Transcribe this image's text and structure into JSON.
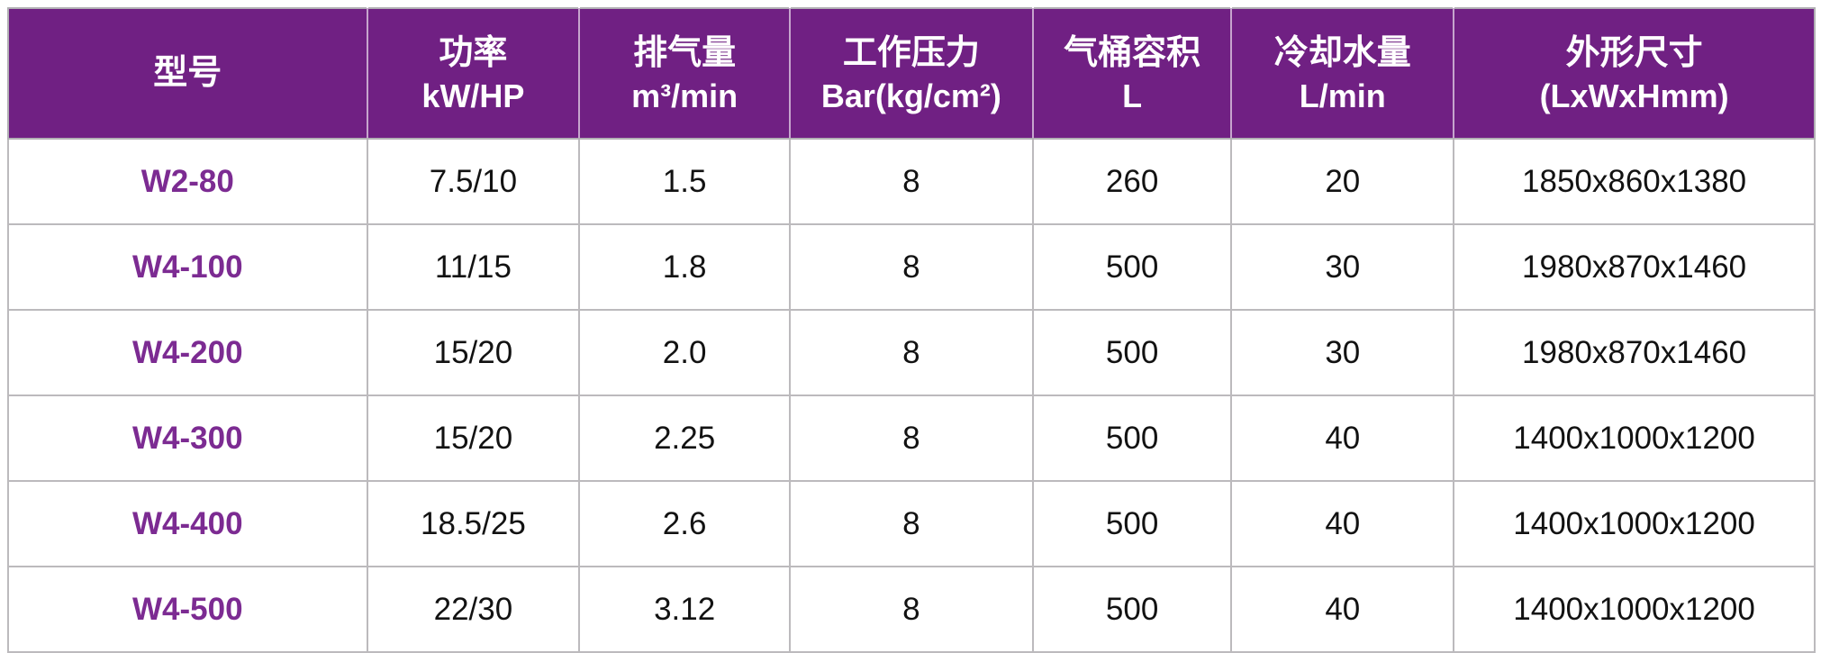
{
  "colors": {
    "header_bg": "#702083",
    "header_text": "#ffffff",
    "model_text": "#7c2b92",
    "cell_text": "#121212",
    "grid_line": "#b2b0b4",
    "background": "#ffffff"
  },
  "chart_data": {
    "type": "table",
    "title": "",
    "columns": [
      {
        "key": "model",
        "title": "型号",
        "unit": ""
      },
      {
        "key": "power",
        "title": "功率",
        "unit": "kW/HP"
      },
      {
        "key": "air-delivery",
        "title": "排气量",
        "unit": "m³/min"
      },
      {
        "key": "working-pressure",
        "title": "工作压力",
        "unit": "Bar(kg/cm²)"
      },
      {
        "key": "tank-capacity",
        "title": "气桶容积",
        "unit": "L"
      },
      {
        "key": "cooling-water",
        "title": "冷却水量",
        "unit": "L/min"
      },
      {
        "key": "dimensions",
        "title": "外形尺寸",
        "unit": "(LxWxHmm)"
      }
    ],
    "rows": [
      {
        "model": "W2-80",
        "values": [
          "7.5/10",
          "1.5",
          "8",
          "260",
          "20",
          "1850x860x1380"
        ]
      },
      {
        "model": "W4-100",
        "values": [
          "11/15",
          "1.8",
          "8",
          "500",
          "30",
          "1980x870x1460"
        ]
      },
      {
        "model": "W4-200",
        "values": [
          "15/20",
          "2.0",
          "8",
          "500",
          "30",
          "1980x870x1460"
        ]
      },
      {
        "model": "W4-300",
        "values": [
          "15/20",
          "2.25",
          "8",
          "500",
          "40",
          "1400x1000x1200"
        ]
      },
      {
        "model": "W4-400",
        "values": [
          "18.5/25",
          "2.6",
          "8",
          "500",
          "40",
          "1400x1000x1200"
        ]
      },
      {
        "model": "W4-500",
        "values": [
          "22/30",
          "3.12",
          "8",
          "500",
          "40",
          "1400x1000x1200"
        ]
      }
    ]
  }
}
